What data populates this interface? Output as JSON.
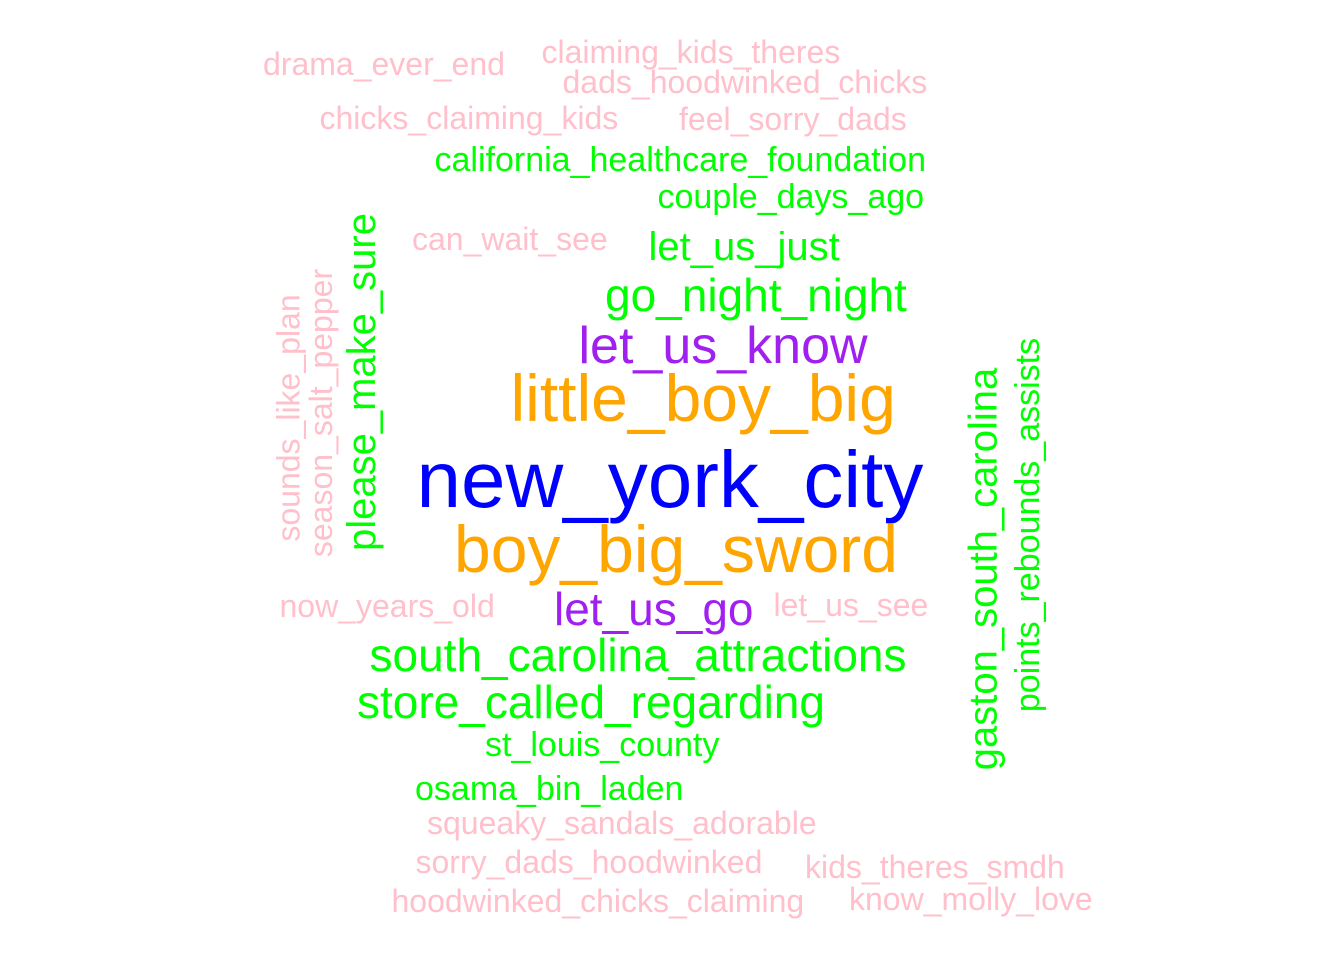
{
  "chart_data": {
    "type": "wordcloud",
    "colors": {
      "tier1": "#0000ff",
      "tier2": "#ffa500",
      "tier3": "#a020f0",
      "tier4": "#00ff00",
      "tier5": "#ffc0cb"
    },
    "words": [
      {
        "text": "new_york_city",
        "tier": 1,
        "rotated": false
      },
      {
        "text": "little_boy_big",
        "tier": 2,
        "rotated": false
      },
      {
        "text": "boy_big_sword",
        "tier": 2,
        "rotated": false
      },
      {
        "text": "let_us_know",
        "tier": 3,
        "rotated": false
      },
      {
        "text": "let_us_go",
        "tier": 3,
        "rotated": false
      },
      {
        "text": "california_healthcare_foundation",
        "tier": 4,
        "rotated": false
      },
      {
        "text": "couple_days_ago",
        "tier": 4,
        "rotated": false
      },
      {
        "text": "let_us_just",
        "tier": 4,
        "rotated": false
      },
      {
        "text": "go_night_night",
        "tier": 4,
        "rotated": false
      },
      {
        "text": "please_make_sure",
        "tier": 4,
        "rotated": true
      },
      {
        "text": "gaston_south_carolina",
        "tier": 4,
        "rotated": true
      },
      {
        "text": "points_rebounds_assists",
        "tier": 4,
        "rotated": true
      },
      {
        "text": "south_carolina_attractions",
        "tier": 4,
        "rotated": false
      },
      {
        "text": "store_called_regarding",
        "tier": 4,
        "rotated": false
      },
      {
        "text": "st_louis_county",
        "tier": 4,
        "rotated": false
      },
      {
        "text": "osama_bin_laden",
        "tier": 4,
        "rotated": false
      },
      {
        "text": "drama_ever_end",
        "tier": 5,
        "rotated": false
      },
      {
        "text": "claiming_kids_theres",
        "tier": 5,
        "rotated": false
      },
      {
        "text": "dads_hoodwinked_chicks",
        "tier": 5,
        "rotated": false
      },
      {
        "text": "chicks_claiming_kids",
        "tier": 5,
        "rotated": false
      },
      {
        "text": "feel_sorry_dads",
        "tier": 5,
        "rotated": false
      },
      {
        "text": "can_wait_see",
        "tier": 5,
        "rotated": false
      },
      {
        "text": "sounds_like_plan",
        "tier": 5,
        "rotated": true
      },
      {
        "text": "season_salt_pepper",
        "tier": 5,
        "rotated": true
      },
      {
        "text": "now_years_old",
        "tier": 5,
        "rotated": false
      },
      {
        "text": "let_us_see",
        "tier": 5,
        "rotated": false
      },
      {
        "text": "squeaky_sandals_adorable",
        "tier": 5,
        "rotated": false
      },
      {
        "text": "sorry_dads_hoodwinked",
        "tier": 5,
        "rotated": false
      },
      {
        "text": "kids_theres_smdh",
        "tier": 5,
        "rotated": false
      },
      {
        "text": "hoodwinked_chicks_claiming",
        "tier": 5,
        "rotated": false
      },
      {
        "text": "know_molly_love",
        "tier": 5,
        "rotated": false
      }
    ]
  }
}
